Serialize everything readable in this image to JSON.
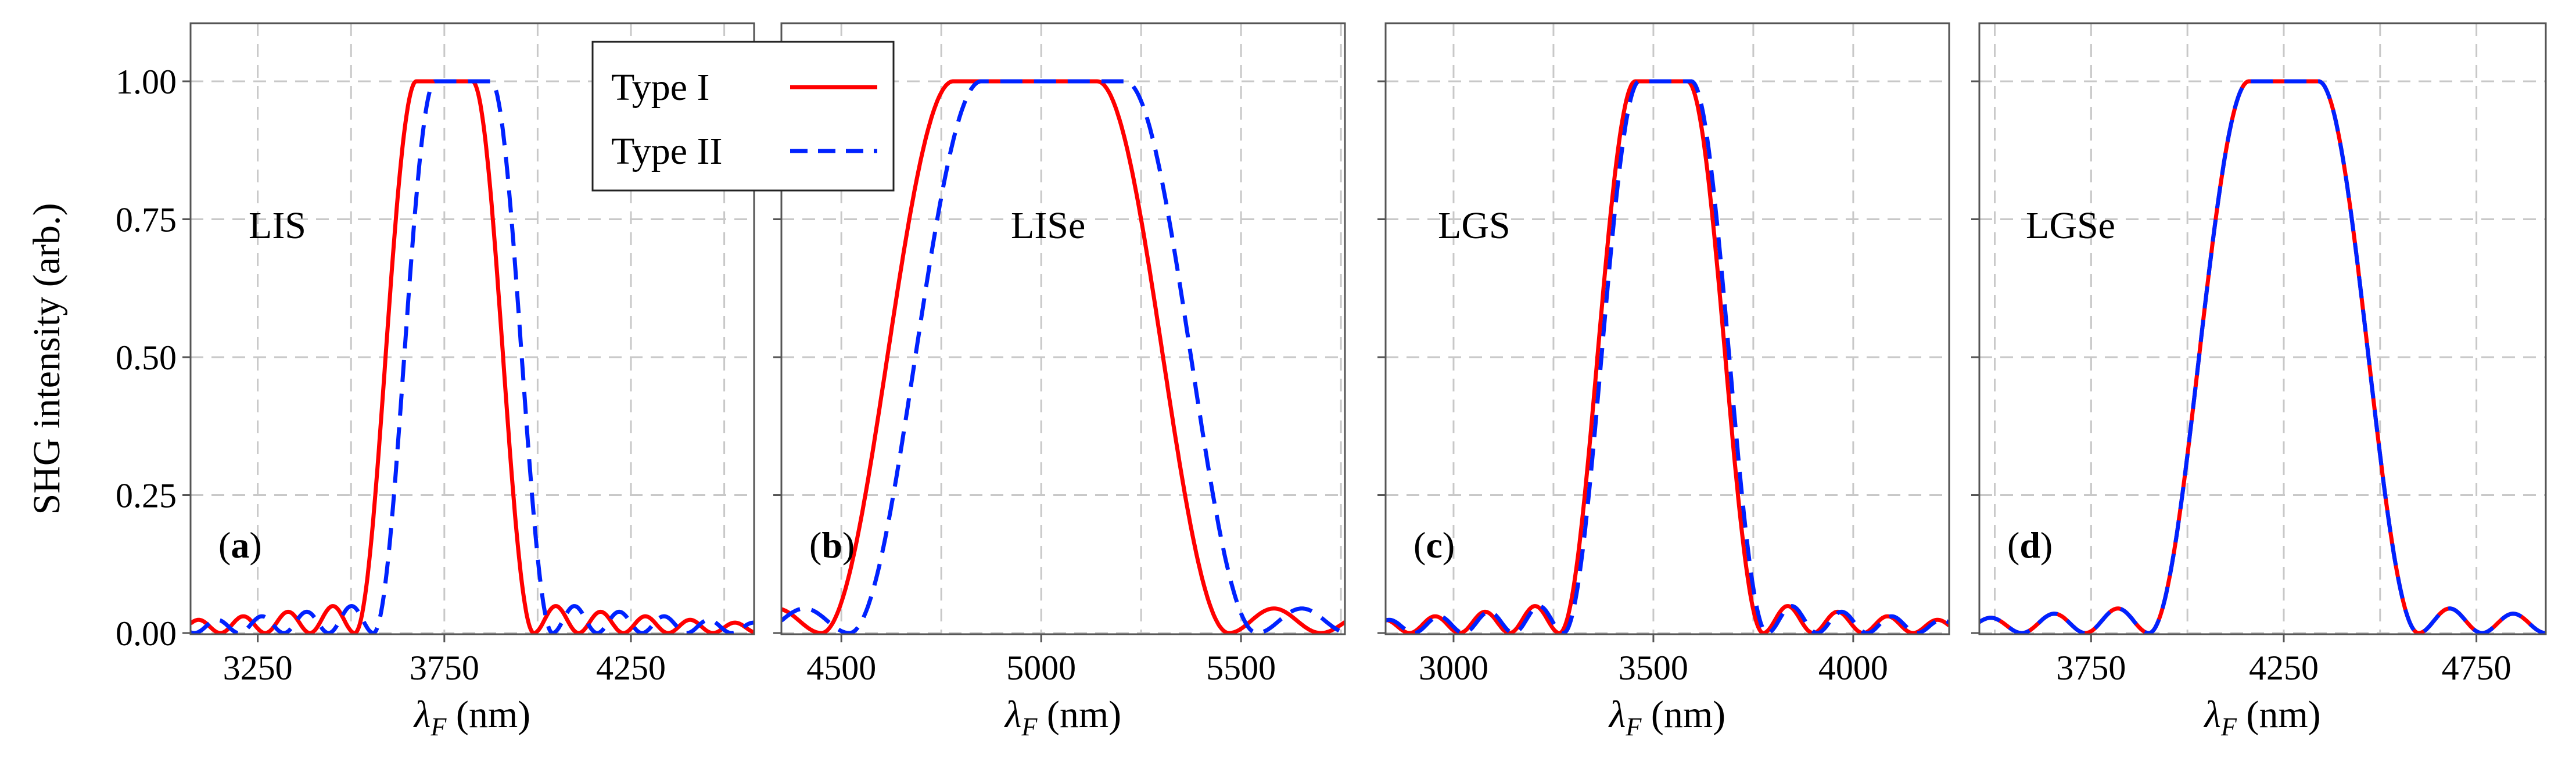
{
  "chart_data": [
    {
      "type": "line",
      "panel_label": "(a)",
      "name_label": "LIS",
      "xlabel": "λ_F (nm)",
      "ylabel": "SHG intensity (arb.)",
      "xlim": [
        3070,
        4580
      ],
      "ylim": [
        0,
        1.1
      ],
      "xticks": [
        3250,
        3750,
        4250
      ],
      "xtick_labels": [
        "3250",
        "3750",
        "4250"
      ],
      "yticks": [
        0,
        0.25,
        0.5,
        0.75,
        1.0
      ],
      "ytick_labels": [
        "0.00",
        "0.25",
        "0.50",
        "0.75",
        "1.00"
      ],
      "grid": true,
      "series": [
        {
          "name": "Type I",
          "color": "#ff0000",
          "style": "solid",
          "center": 3750,
          "flat_half": 75,
          "edge": 165,
          "ripple": 0.055,
          "ripple_period": 120
        },
        {
          "name": "Type II",
          "color": "#0022ff",
          "style": "dashed",
          "center": 3800,
          "flat_half": 75,
          "edge": 165,
          "ripple": 0.055,
          "ripple_period": 120
        }
      ]
    },
    {
      "type": "line",
      "panel_label": "(b)",
      "name_label": "LISe",
      "xlabel": "λ_F (nm)",
      "ylabel": "",
      "xlim": [
        4350,
        5760
      ],
      "ylim": [
        0,
        1.1
      ],
      "xticks": [
        4500,
        5000,
        5500
      ],
      "xtick_labels": [
        "4500",
        "5000",
        "5500"
      ],
      "yticks": [
        0,
        0.25,
        0.5,
        0.75,
        1.0
      ],
      "ytick_labels": [],
      "grid": true,
      "series": [
        {
          "name": "Type I",
          "color": "#ff0000",
          "style": "solid",
          "center": 4960,
          "flat_half": 180,
          "edge": 330,
          "ripple": 0.05,
          "ripple_period": 230
        },
        {
          "name": "Type II",
          "color": "#0022ff",
          "style": "dashed",
          "center": 5030,
          "flat_half": 180,
          "edge": 330,
          "ripple": 0.05,
          "ripple_period": 230
        }
      ]
    },
    {
      "type": "line",
      "panel_label": "(c)",
      "name_label": "LGS",
      "xlabel": "λ_F (nm)",
      "ylabel": "",
      "xlim": [
        2830,
        4240
      ],
      "ylim": [
        0,
        1.1
      ],
      "xticks": [
        3000,
        3500,
        4000
      ],
      "xtick_labels": [
        "3000",
        "3500",
        "4000"
      ],
      "yticks": [
        0,
        0.25,
        0.5,
        0.75,
        1.0
      ],
      "ytick_labels": [],
      "grid": true,
      "series": [
        {
          "name": "Type I",
          "color": "#ff0000",
          "style": "solid",
          "center": 3520,
          "flat_half": 65,
          "edge": 190,
          "ripple": 0.055,
          "ripple_period": 125
        },
        {
          "name": "Type II",
          "color": "#0022ff",
          "style": "dashed",
          "center": 3530,
          "flat_half": 65,
          "edge": 190,
          "ripple": 0.055,
          "ripple_period": 125
        }
      ]
    },
    {
      "type": "line",
      "panel_label": "(d)",
      "name_label": "LGSe",
      "xlabel": "λ_F (nm)",
      "ylabel": "",
      "xlim": [
        3460,
        4930
      ],
      "ylim": [
        0,
        1.1
      ],
      "xticks": [
        3750,
        4250,
        4750
      ],
      "xtick_labels": [
        "3750",
        "4250",
        "4750"
      ],
      "yticks": [
        0,
        0.25,
        0.5,
        0.75,
        1.0
      ],
      "ytick_labels": [],
      "grid": true,
      "series": [
        {
          "name": "Type I",
          "color": "#ff0000",
          "style": "solid",
          "center": 4250,
          "flat_half": 90,
          "edge": 260,
          "ripple": 0.05,
          "ripple_period": 165
        },
        {
          "name": "Type II",
          "color": "#0022ff",
          "style": "dashed",
          "center": 4250,
          "flat_half": 90,
          "edge": 260,
          "ripple": 0.05,
          "ripple_period": 165
        }
      ]
    }
  ],
  "legend": {
    "location": "top, inside panel (a)-(b)",
    "entries": [
      {
        "label": "Type I",
        "color": "#ff0000",
        "style": "solid"
      },
      {
        "label": "Type II",
        "color": "#0022ff",
        "style": "dashed"
      }
    ]
  }
}
